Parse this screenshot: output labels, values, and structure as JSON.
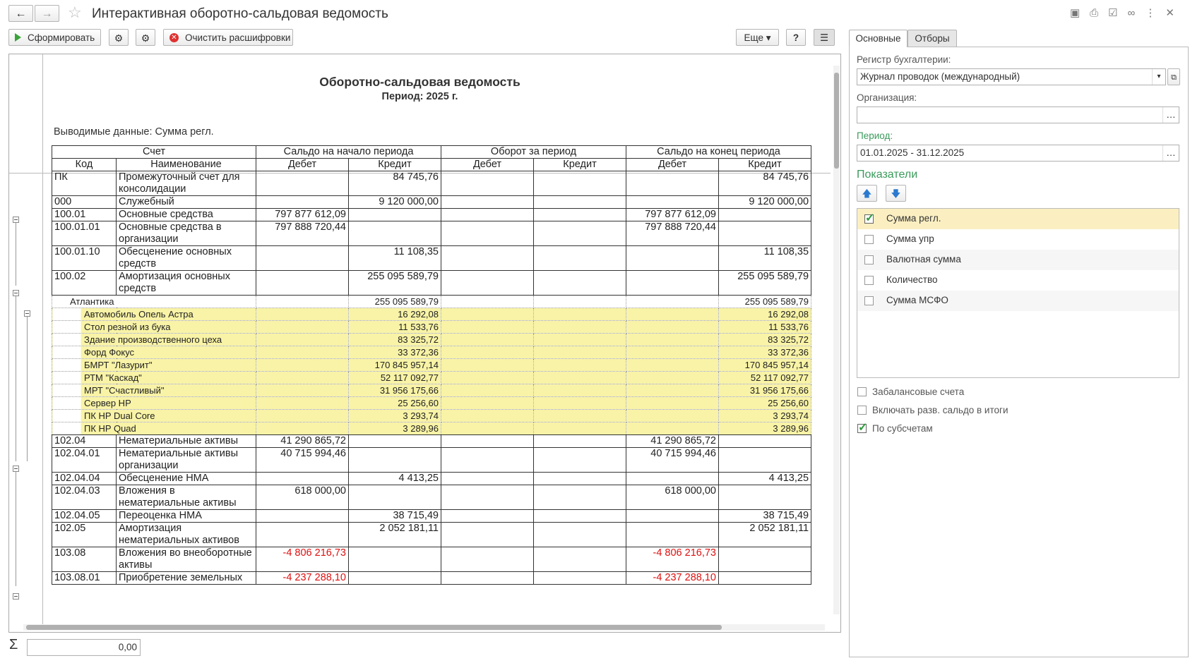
{
  "window": {
    "title": "Интерактивная оборотно-сальдовая ведомость"
  },
  "toolbar": {
    "generate": "Сформировать",
    "clear": "Очистить расшифровки",
    "more": "Еще",
    "help": "?"
  },
  "report": {
    "title": "Оборотно-сальдовая ведомость",
    "period": "Период: 2025 г.",
    "output": "Выводимые данные: Сумма регл.",
    "header": {
      "account": "Счет",
      "opening": "Сальдо на начало периода",
      "turnover": "Оборот за период",
      "closing": "Сальдо на конец периода",
      "code": "Код",
      "name": "Наименование",
      "debit": "Дебет",
      "credit": "Кредит"
    },
    "rows": [
      [
        "ПК",
        "Промежуточный счет для консолидации",
        null,
        "84 745,76",
        null,
        null,
        null,
        "84 745,76"
      ],
      [
        "000",
        "Служебный",
        null,
        "9 120 000,00",
        null,
        null,
        null,
        "9 120 000,00"
      ],
      [
        "100.01",
        "Основные средства",
        "797 877 612,09",
        null,
        null,
        null,
        "797 877 612,09",
        null
      ],
      [
        "100.01.01",
        "Основные средства в организации",
        "797 888 720,44",
        null,
        null,
        null,
        "797 888 720,44",
        null
      ],
      [
        "100.01.10",
        "Обесценение основных средств",
        null,
        "11 108,35",
        null,
        null,
        null,
        "11 108,35"
      ],
      [
        "100.02",
        "Амортизация основных средств",
        null,
        "255 095 589,79",
        null,
        null,
        null,
        "255 095 589,79"
      ],
      {
        "name": "Атлантика",
        "values": [
          null,
          "255 095 589,79",
          null,
          null,
          null,
          "255 095 589,79"
        ],
        "items": [
          {
            "name": "Автомобиль Опель Астра",
            "values": [
              null,
              "16 292,08",
              null,
              null,
              null,
              "16 292,08"
            ]
          },
          {
            "name": "Стол резной из бука",
            "values": [
              null,
              "11 533,76",
              null,
              null,
              null,
              "11 533,76"
            ]
          },
          {
            "name": "Здание производственного цеха",
            "values": [
              null,
              "83 325,72",
              null,
              null,
              null,
              "83 325,72"
            ]
          },
          {
            "name": "Форд Фокус",
            "values": [
              null,
              "33 372,36",
              null,
              null,
              null,
              "33 372,36"
            ]
          },
          {
            "name": "БМРТ \"Лазурит\"",
            "values": [
              null,
              "170 845 957,14",
              null,
              null,
              null,
              "170 845 957,14"
            ]
          },
          {
            "name": "РТМ \"Каскад\"",
            "values": [
              null,
              "52 117 092,77",
              null,
              null,
              null,
              "52 117 092,77"
            ]
          },
          {
            "name": "МРТ \"Счастливый\"",
            "values": [
              null,
              "31 956 175,66",
              null,
              null,
              null,
              "31 956 175,66"
            ]
          },
          {
            "name": "Сервер HP",
            "values": [
              null,
              "25 256,60",
              null,
              null,
              null,
              "25 256,60"
            ]
          },
          {
            "name": "ПК HP Dual Core",
            "values": [
              null,
              "3 293,74",
              null,
              null,
              null,
              "3 293,74"
            ]
          },
          {
            "name": "ПК HP Quad",
            "values": [
              null,
              "3 289,96",
              null,
              null,
              null,
              "3 289,96"
            ]
          }
        ]
      },
      [
        "102.04",
        "Нематериальные активы",
        "41 290 865,72",
        null,
        null,
        null,
        "41 290 865,72",
        null
      ],
      [
        "102.04.01",
        "Нематериальные активы организации",
        "40 715 994,46",
        null,
        null,
        null,
        "40 715 994,46",
        null
      ],
      [
        "102.04.04",
        "Обесценение НМА",
        null,
        "4 413,25",
        null,
        null,
        null,
        "4 413,25"
      ],
      [
        "102.04.03",
        "Вложения в нематериальные активы",
        "618 000,00",
        null,
        null,
        null,
        "618 000,00",
        null
      ],
      [
        "102.04.05",
        "Переоценка НМА",
        null,
        "38 715,49",
        null,
        null,
        null,
        "38 715,49"
      ],
      [
        "102.05",
        "Амортизация нематериальных активов",
        null,
        "2 052 181,11",
        null,
        null,
        null,
        "2 052 181,11"
      ],
      [
        "103.08",
        "Вложения во внеоборотные активы",
        "-4 806 216,73",
        null,
        null,
        null,
        "-4 806 216,73",
        null
      ],
      [
        "103.08.01",
        "Приобретение земельных",
        "-4 237 288,10",
        null,
        null,
        null,
        "-4 237 288,10",
        null
      ]
    ]
  },
  "panel": {
    "tabs": [
      "Основные",
      "Отборы"
    ],
    "register_label": "Регистр бухгалтерии:",
    "register": "Журнал проводок (международный)",
    "organization_label": "Организация:",
    "period_label": "Период:",
    "period": "01.01.2025 - 31.12.2025",
    "indicators_label": "Показатели",
    "indicators": [
      {
        "label": "Сумма регл.",
        "checked": true
      },
      {
        "label": "Сумма упр",
        "checked": false
      },
      {
        "label": "Валютная сумма",
        "checked": false
      },
      {
        "label": "Количество",
        "checked": false
      },
      {
        "label": "Сумма МСФО",
        "checked": false
      }
    ],
    "options": [
      {
        "label": "Забалансовые счета",
        "checked": false
      },
      {
        "label": "Включать разв. сальдо в итоги",
        "checked": false
      },
      {
        "label": "По субсчетам",
        "checked": true
      }
    ]
  },
  "footer": {
    "sigma": "Σ",
    "total": "0,00"
  }
}
